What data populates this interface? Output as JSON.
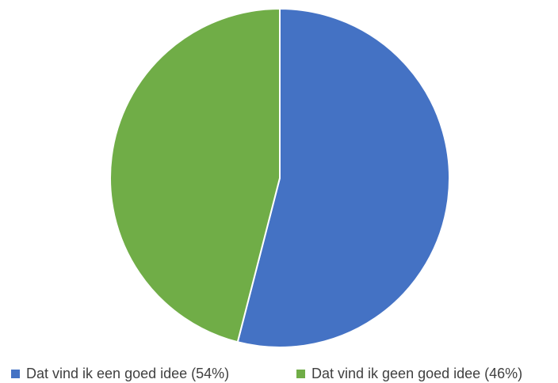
{
  "chart_data": {
    "type": "pie",
    "slices": [
      {
        "label": "Dat vind ik een goed idee (54%)",
        "value": 54,
        "color": "#4472C4"
      },
      {
        "label": "Dat vind ik geen goed idee (46%)",
        "value": 46,
        "color": "#70AD47"
      }
    ],
    "legend_position": "bottom"
  },
  "legend": {
    "items": [
      {
        "label": "Dat vind ik een goed idee (54%)",
        "color": "#4472C4"
      },
      {
        "label": "Dat vind ik geen goed idee (46%)",
        "color": "#70AD47"
      }
    ]
  }
}
